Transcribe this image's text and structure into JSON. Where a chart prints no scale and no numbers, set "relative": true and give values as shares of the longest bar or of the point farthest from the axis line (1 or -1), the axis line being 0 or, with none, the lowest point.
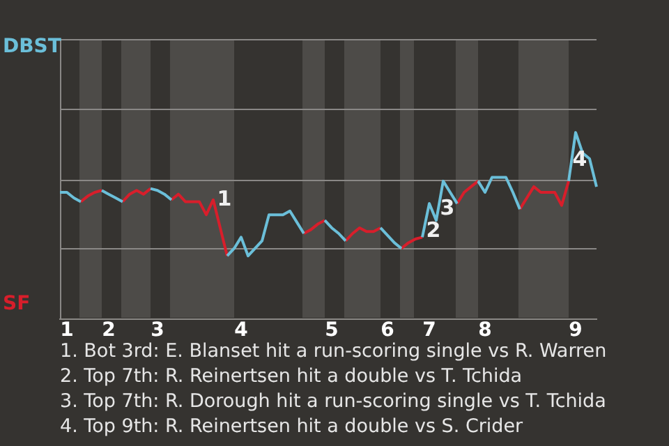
{
  "chart_data": {
    "type": "line",
    "relative": true,
    "categories": [
      null,
      "1",
      null,
      null,
      null,
      null,
      null,
      "2",
      null,
      null,
      null,
      null,
      null,
      null,
      "3",
      null,
      null,
      null,
      null,
      null,
      null,
      null,
      null,
      null,
      null,
      null,
      "4",
      null,
      null,
      null,
      null,
      null,
      null,
      null,
      null,
      null,
      null,
      null,
      null,
      "5",
      null,
      null,
      null,
      null,
      null,
      null,
      null,
      "6",
      null,
      null,
      null,
      null,
      null,
      "7",
      null,
      null,
      null,
      null,
      null,
      null,
      null,
      "8",
      null,
      null,
      null,
      null,
      null,
      null,
      null,
      null,
      null,
      null,
      null,
      null,
      "9",
      null,
      null,
      null
    ],
    "series": [
      {
        "name": "DBST",
        "color": "#6bbfd9",
        "values": [
          0.68,
          0.68,
          0.65,
          0.63,
          null,
          null,
          0.69,
          0.67,
          0.65,
          0.63,
          null,
          null,
          null,
          0.7,
          0.69,
          0.67,
          0.64,
          null,
          null,
          null,
          null,
          null,
          null,
          null,
          0.34,
          0.38,
          0.44,
          0.34,
          0.38,
          0.42,
          0.56,
          0.56,
          0.56,
          0.58,
          0.52,
          0.46,
          null,
          null,
          0.53,
          0.49,
          0.46,
          0.42,
          null,
          null,
          null,
          null,
          0.49,
          0.45,
          0.41,
          0.38,
          null,
          null,
          0.44,
          0.62,
          0.53,
          0.74,
          0.68,
          0.62,
          null,
          null,
          0.74,
          0.68,
          0.76,
          0.76,
          0.76,
          0.68,
          0.59,
          null,
          null,
          null,
          null,
          null,
          null,
          0.74,
          1,
          0.89,
          0.86,
          0.71
        ]
      },
      {
        "name": "SF",
        "color": "#d81e2b",
        "values": [
          null,
          null,
          null,
          0.63,
          0.66,
          0.68,
          0.69,
          null,
          null,
          0.63,
          0.67,
          0.69,
          0.67,
          0.7,
          null,
          null,
          0.64,
          0.67,
          0.63,
          0.63,
          0.63,
          0.56,
          0.64,
          0.49,
          0.34,
          null,
          null,
          null,
          null,
          null,
          null,
          null,
          null,
          null,
          null,
          0.46,
          0.48,
          0.51,
          0.53,
          null,
          null,
          0.42,
          0.46,
          0.49,
          0.47,
          0.47,
          0.49,
          null,
          null,
          0.38,
          0.41,
          0.43,
          0.44,
          null,
          null,
          null,
          null,
          0.62,
          0.68,
          0.71,
          0.74,
          null,
          null,
          null,
          null,
          null,
          0.59,
          0.65,
          0.71,
          0.68,
          0.68,
          0.68,
          0.61,
          0.74,
          null,
          null,
          null,
          null
        ]
      }
    ],
    "ref_lines": [
      {
        "axis": "y",
        "value": 0.38,
        "color": "#8a8886"
      },
      {
        "axis": "y",
        "value": 0.75,
        "color": "#8a8886"
      },
      {
        "axis": "y",
        "value": 1.13,
        "color": "#8a8886"
      },
      {
        "axis": "y",
        "value": 1.5,
        "color": "#8a8886"
      }
    ],
    "annotations": [
      {
        "text": "1",
        "y": 0.49
      },
      {
        "text": "2",
        "y": 0.62
      },
      {
        "text": "3",
        "y": 0.74
      },
      {
        "text": "4",
        "y": 1
      },
      "1. Bot 3rd: E. Blanset hit a run-scoring single vs R. Warren",
      "2. Top 7th: R. Reinertsen hit a double vs T. Tchida",
      "3. Top 7th: R. Dorough hit a run-scoring single vs T. Tchida",
      "4. Top 9th: R. Reinertsen hit a double vs S. Crider"
    ]
  }
}
